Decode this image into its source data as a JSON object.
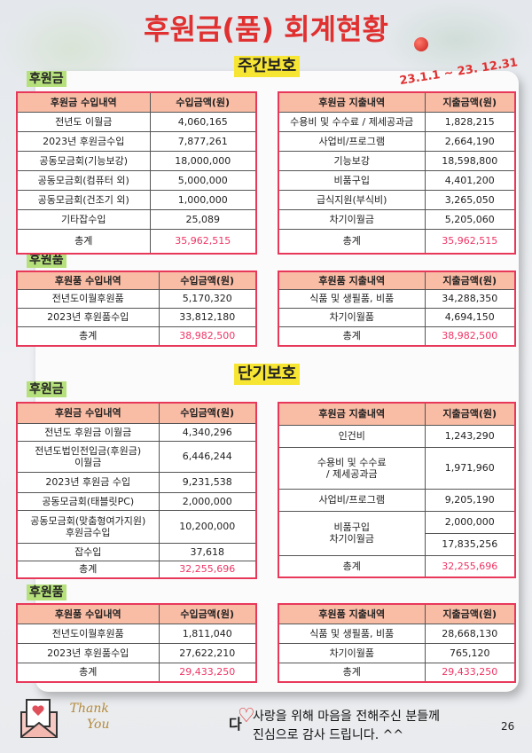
{
  "title": "후원금(품) 회계현황",
  "period": "23.1.1 ~ 23. 12.31",
  "colors": {
    "title": "#e03030",
    "border": "#e8385a",
    "header": "#f9bca5",
    "total": "#ef3565",
    "badge": "#f7e534",
    "label": "#b6e07c"
  },
  "day": {
    "heading": "주간보호",
    "money": {
      "label": "후원금",
      "income": {
        "headers": [
          "후원금 수입내역",
          "수입금액(원)"
        ],
        "rows": [
          [
            "전년도 이월금",
            "4,060,165"
          ],
          [
            "2023년 후원금수입",
            "7,877,261"
          ],
          [
            "공동모금회(기능보강)",
            "18,000,000"
          ],
          [
            "공동모금회(컴퓨터 외)",
            "5,000,000"
          ],
          [
            "공동모금회(건조기 외)",
            "1,000,000"
          ],
          [
            "기타잡수입",
            "25,089"
          ]
        ],
        "total": [
          "총계",
          "35,962,515"
        ]
      },
      "expense": {
        "headers": [
          "후원금 지출내역",
          "지출금액(원)"
        ],
        "rows": [
          [
            "수용비 및 수수료 / 제세공과금",
            "1,828,215"
          ],
          [
            "사업비/프로그램",
            "2,664,190"
          ],
          [
            "기능보강",
            "18,598,800"
          ],
          [
            "비품구입",
            "4,401,200"
          ],
          [
            "급식지원(부식비)",
            "3,265,050"
          ],
          [
            "차기이월금",
            "5,205,060"
          ]
        ],
        "total": [
          "총계",
          "35,962,515"
        ]
      }
    },
    "goods": {
      "label": "후원품",
      "income": {
        "headers": [
          "후원품 수입내역",
          "수입금액(원)"
        ],
        "rows": [
          [
            "전년도이월후원품",
            "5,170,320"
          ],
          [
            "2023년 후원품수입",
            "33,812,180"
          ]
        ],
        "total": [
          "총계",
          "38,982,500"
        ]
      },
      "expense": {
        "headers": [
          "후원품 지출내역",
          "지출금액(원)"
        ],
        "rows": [
          [
            "식품 및 생필품, 비품",
            "34,288,350"
          ],
          [
            "차기이월품",
            "4,694,150"
          ]
        ],
        "total": [
          "총계",
          "38,982,500"
        ]
      }
    }
  },
  "short": {
    "heading": "단기보호",
    "money": {
      "label": "후원금",
      "income": {
        "headers": [
          "후원금 수입내역",
          "수입금액(원)"
        ],
        "rows": [
          [
            "전년도 후원금 이월금",
            "4,340,296"
          ],
          [
            "전년도법인전입금(후원금)\n이월금",
            "6,446,244"
          ],
          [
            "2023년 후원금 수입",
            "9,231,538"
          ],
          [
            "공동모금회(태블릿PC)",
            "2,000,000"
          ],
          [
            "공동모금회(맞춤형여가지원)\n후원금수입",
            "10,200,000"
          ],
          [
            "잡수입",
            "37,618"
          ]
        ],
        "total": [
          "총계",
          "32,255,696"
        ]
      },
      "expense": {
        "headers": [
          "후원금 지출내역",
          "지출금액(원)"
        ],
        "rows": [
          [
            "인건비",
            "1,243,290"
          ],
          [
            "수용비 및 수수료\n/ 제세공과금",
            "1,971,960"
          ],
          [
            "사업비/프로그램",
            "9,205,190"
          ],
          [
            "비품구입\n차기이월금",
            "2,000,000",
            "17,835,256"
          ]
        ],
        "total": [
          "총계",
          "32,255,696"
        ]
      }
    },
    "goods": {
      "label": "후원품",
      "income": {
        "headers": [
          "후원품 수입내역",
          "수입금액(원)"
        ],
        "rows": [
          [
            "전년도이월후원품",
            "1,811,040"
          ],
          [
            "2023년 후원품수입",
            "27,622,210"
          ]
        ],
        "total": [
          "총계",
          "29,433,250"
        ]
      },
      "expense": {
        "headers": [
          "후원품 지출내역",
          "지출금액(원)"
        ],
        "rows": [
          [
            "식품 및 생필품, 비품",
            "28,668,130"
          ],
          [
            "차기이월품",
            "765,120"
          ]
        ],
        "total": [
          "총계",
          "29,433,250"
        ]
      }
    }
  },
  "footer": {
    "thank": "Thank",
    "you": "You",
    "da": "다",
    "line1": "사랑을 위해 마음을 전해주신 분들께",
    "line2": "진심으로 감사 드립니다. ^^",
    "page": "26"
  },
  "icons": [
    "envelope-heart-icon",
    "heart-icon",
    "ornament-icon"
  ]
}
